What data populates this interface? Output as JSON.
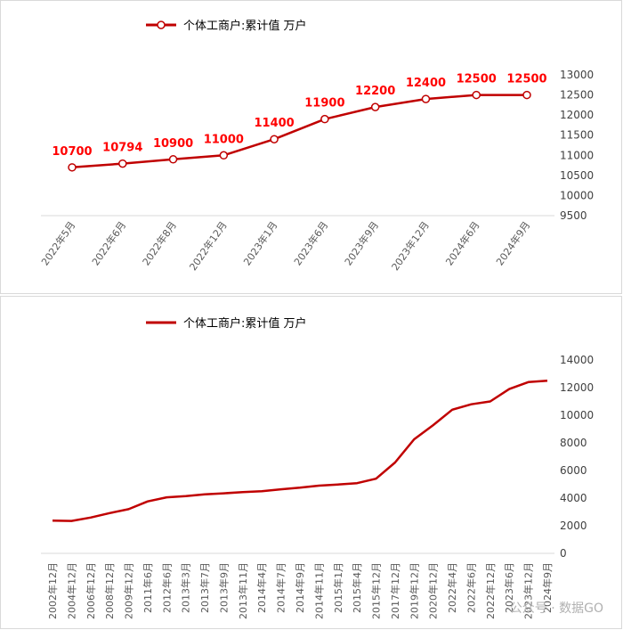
{
  "chart_data": [
    {
      "type": "line",
      "title": "",
      "legend": "个体工商户:累计值 万户",
      "legend_position": "top-left",
      "color": "#c00000",
      "categories": [
        "2022年5月",
        "2022年6月",
        "2022年8月",
        "2022年12月",
        "2023年1月",
        "2023年6月",
        "2023年9月",
        "2023年12月",
        "2024年6月",
        "2024年9月"
      ],
      "values": [
        10700,
        10794,
        10900,
        11000,
        11400,
        11900,
        12200,
        12400,
        12500,
        12500
      ],
      "data_labels": [
        "10700",
        "10794",
        "10900",
        "11000",
        "11400",
        "11900",
        "12200",
        "12400",
        "12500",
        "12500"
      ],
      "y_axis_position": "right",
      "ylim": [
        9500,
        13000
      ],
      "yticks": [
        9500,
        10000,
        10500,
        11000,
        11500,
        12000,
        12500,
        13000
      ],
      "markers": "open-circle",
      "grid": false
    },
    {
      "type": "line",
      "title": "",
      "legend": "个体工商户:累计值 万户",
      "legend_position": "top-left",
      "color": "#c00000",
      "categories": [
        "2002年12月",
        "2004年12月",
        "2006年12月",
        "2008年12月",
        "2009年12月",
        "2011年6月",
        "2012年6月",
        "2013年3月",
        "2013年7月",
        "2013年9月",
        "2013年11月",
        "2014年4月",
        "2014年7月",
        "2014年9月",
        "2014年11月",
        "2015年1月",
        "2015年4月",
        "2015年12月",
        "2017年12月",
        "2019年12月",
        "2020年12月",
        "2022年4月",
        "2022年6月",
        "2022年12月",
        "2023年6月",
        "2023年12月",
        "2024年9月"
      ],
      "values": [
        2377,
        2350,
        2595,
        2917,
        3197,
        3760,
        4059,
        4145,
        4270,
        4346,
        4436,
        4506,
        4640,
        4757,
        4903,
        4984,
        5084,
        5408,
        6579,
        8261,
        9287,
        10400,
        10794,
        11000,
        11900,
        12400,
        12500
      ],
      "y_axis_position": "right",
      "ylim": [
        0,
        14000
      ],
      "yticks": [
        0,
        2000,
        4000,
        6000,
        8000,
        10000,
        12000,
        14000
      ],
      "grid": false
    }
  ],
  "watermark": "公众号 · 数据GO"
}
